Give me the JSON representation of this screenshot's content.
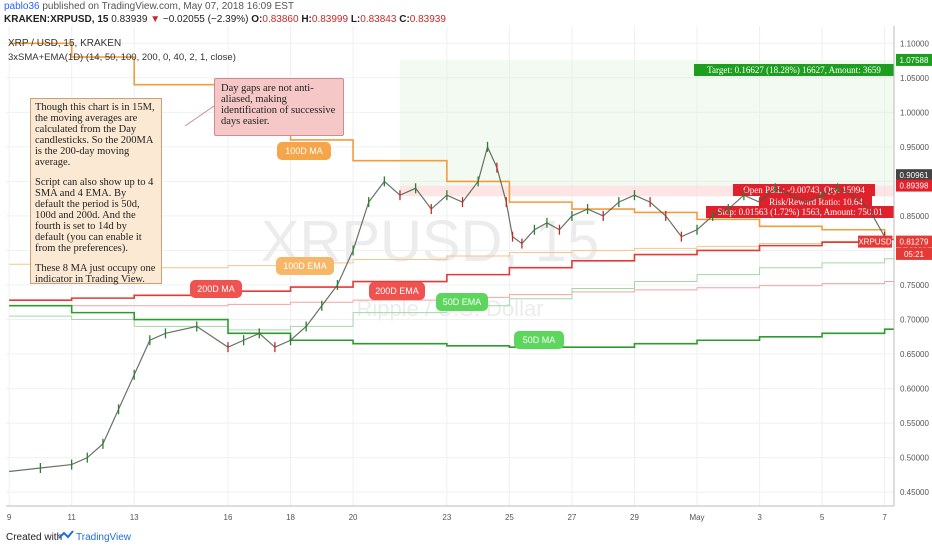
{
  "header": {
    "author": "pablo36",
    "published_text": "published on TradingView.com, May 07, 2018 16:09 EST",
    "symbol_line": "KRAKEN:XRPUSD, 15",
    "last_price": "0.83939",
    "change_text": "−0.02055 (−2.39%)",
    "o_label": "O:",
    "o_value": "0.83860",
    "h_label": "H:",
    "h_value": "0.83999",
    "l_label": "L:",
    "l_value": "0.83843",
    "c_label": "C:",
    "c_value": "0.83939"
  },
  "legend": {
    "line1": "XRP / USD, 15, KRAKEN",
    "line2": "3xSMA+EMA(1D) (14, 50, 100, 200, 0, 40, 2, 1, close)"
  },
  "watermark": {
    "symbol": "XRPUSD, 15",
    "name": "Ripple / U.S. Dollar"
  },
  "notes": {
    "main_p1": "Though this chart is in 15M, the moving averages are calculated from the Day candlesticks. So the 200MA is the 200-day moving average.",
    "main_p2": "Script can also show up to 4 SMA and 4 EMA. By default the period is 50d, 100d and 200d. And the fourth is set to 14d by default (you can enable it from the preferences).",
    "main_p3": "These 8 MA just occupy one indicator in Trading View.",
    "gap_note": "Day gaps are not anti-aliased, making identification of successive days easier."
  },
  "bubbles": {
    "ma100": "100D MA",
    "ema100": "100D EMA",
    "ma200": "200D MA",
    "ema200": "200D EMA",
    "ema50": "50D EMA",
    "ma50": "50D MA"
  },
  "trade": {
    "target": "Target: 0.16627 (18.28%) 16627, Amount: 3659",
    "pnl": "Open P&L: -0.00743, Qty: 15994",
    "rr": "Risk/Reward Ratio: 10.64",
    "stop": "Stop: 0.01563 (1.72%) 1563, Amount: 750.01"
  },
  "price_tags": {
    "target_price": "1.07588",
    "upper": "0.90961",
    "entry": "0.89398",
    "symbol": "XRPUSD",
    "last": "0.81279",
    "countdown": "05:21"
  },
  "footer": {
    "created": "Created with",
    "brand": "TradingView"
  },
  "colors": {
    "ma100": "#f39c3c",
    "ema100": "#f7c48a",
    "ma200": "#e53935",
    "ema200": "#f4a4a4",
    "ma50": "#2e9b2e",
    "ema50": "#a5d6a7",
    "candle_up": "#2e7d32",
    "candle_down": "#c62828",
    "target": "#1e9e1e",
    "stop": "#e0202a"
  },
  "chart_data": {
    "type": "line",
    "title": "XRP / USD, 15, KRAKEN",
    "xlabel": "",
    "ylabel": "",
    "x_tick_labels": [
      "9",
      "11",
      "13",
      "16",
      "18",
      "20",
      "23",
      "25",
      "27",
      "29",
      "May",
      "3",
      "5",
      "7"
    ],
    "y_tick_labels": [
      "1.10000",
      "1.05000",
      "1.00000",
      "0.95000",
      "0.90000",
      "0.85000",
      "0.80000",
      "0.75000",
      "0.70000",
      "0.65000",
      "0.60000",
      "0.55000",
      "0.50000",
      "0.45000"
    ],
    "ylim": [
      0.43,
      1.125
    ],
    "grid": true,
    "x": [
      9,
      11,
      13,
      16,
      18,
      20,
      23,
      25,
      27,
      29,
      31,
      33,
      35,
      37
    ],
    "price": {
      "name": "XRPUSD",
      "x": [
        9,
        10,
        11,
        11.5,
        12,
        12.5,
        13,
        13.5,
        14,
        15,
        16,
        16.5,
        17,
        17.5,
        18,
        18.5,
        19,
        19.5,
        20,
        20.5,
        21,
        21.5,
        22,
        22.5,
        23,
        23.5,
        24,
        24.3,
        24.6,
        24.9,
        25.1,
        25.4,
        25.8,
        26.2,
        26.6,
        27,
        27.5,
        28,
        28.5,
        29,
        29.5,
        30,
        30.5,
        31,
        31.5,
        32,
        32.5,
        33,
        33.5,
        34,
        34.5,
        35,
        35.5,
        36,
        36.5,
        37
      ],
      "values": [
        0.48,
        0.485,
        0.49,
        0.5,
        0.52,
        0.57,
        0.62,
        0.67,
        0.68,
        0.69,
        0.66,
        0.67,
        0.68,
        0.66,
        0.67,
        0.69,
        0.72,
        0.75,
        0.8,
        0.87,
        0.9,
        0.88,
        0.89,
        0.86,
        0.88,
        0.87,
        0.9,
        0.95,
        0.92,
        0.87,
        0.82,
        0.81,
        0.83,
        0.84,
        0.83,
        0.85,
        0.86,
        0.85,
        0.87,
        0.88,
        0.87,
        0.85,
        0.82,
        0.83,
        0.85,
        0.86,
        0.88,
        0.87,
        0.89,
        0.88,
        0.87,
        0.88,
        0.89,
        0.88,
        0.86,
        0.82
      ]
    },
    "series": [
      {
        "name": "100D MA",
        "x": [
          9,
          11,
          13,
          16,
          18,
          20,
          23,
          25,
          27,
          29,
          31,
          33,
          35,
          37
        ],
        "values": [
          1.1,
          1.08,
          1.04,
          1.0,
          0.96,
          0.93,
          0.9,
          0.87,
          0.86,
          0.855,
          0.845,
          0.835,
          0.83,
          0.82
        ]
      },
      {
        "name": "100D EMA",
        "x": [
          9,
          11,
          13,
          16,
          18,
          20,
          23,
          25,
          27,
          29,
          31,
          33,
          35,
          37
        ],
        "values": [
          0.78,
          0.777,
          0.775,
          0.778,
          0.782,
          0.787,
          0.792,
          0.797,
          0.8,
          0.803,
          0.806,
          0.81,
          0.813,
          0.817
        ]
      },
      {
        "name": "200D MA",
        "x": [
          9,
          11,
          13,
          16,
          18,
          20,
          23,
          25,
          27,
          29,
          31,
          33,
          35,
          37
        ],
        "values": [
          0.728,
          0.731,
          0.735,
          0.741,
          0.747,
          0.755,
          0.765,
          0.775,
          0.785,
          0.794,
          0.8,
          0.807,
          0.812,
          0.816
        ]
      },
      {
        "name": "200D EMA",
        "x": [
          9,
          11,
          13,
          16,
          18,
          20,
          23,
          25,
          27,
          29,
          31,
          33,
          35,
          37
        ],
        "values": [
          0.72,
          0.72,
          0.72,
          0.722,
          0.725,
          0.728,
          0.732,
          0.736,
          0.74,
          0.743,
          0.746,
          0.749,
          0.752,
          0.755
        ]
      },
      {
        "name": "50D EMA",
        "x": [
          9,
          11,
          13,
          16,
          18,
          20,
          23,
          25,
          27,
          29,
          31,
          33,
          35,
          37
        ],
        "values": [
          0.705,
          0.7,
          0.69,
          0.685,
          0.69,
          0.71,
          0.72,
          0.73,
          0.745,
          0.755,
          0.765,
          0.775,
          0.782,
          0.788
        ]
      },
      {
        "name": "50D MA",
        "x": [
          9,
          11,
          13,
          16,
          18,
          20,
          23,
          25,
          27,
          29,
          31,
          33,
          35,
          37
        ],
        "values": [
          0.72,
          0.71,
          0.7,
          0.68,
          0.67,
          0.665,
          0.662,
          0.66,
          0.66,
          0.665,
          0.67,
          0.675,
          0.68,
          0.686
        ]
      }
    ],
    "trade_levels": {
      "target": 1.07588,
      "entry": 0.89398,
      "stop": 0.8783
    }
  }
}
